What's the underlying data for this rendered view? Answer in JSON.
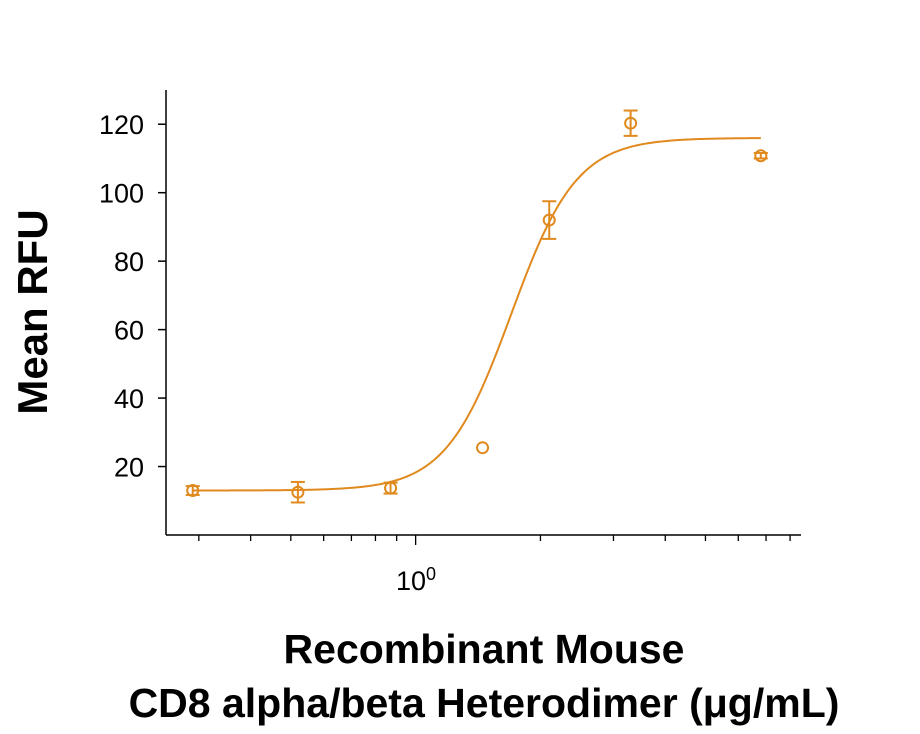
{
  "chart_data": {
    "type": "scatter",
    "xlabel_lines": [
      "Recombinant Mouse",
      "CD8 alpha/beta Heterodimer (μg/mL)"
    ],
    "ylabel": "Mean RFU",
    "x_scale": "log",
    "x_tick_label": {
      "value": 1,
      "base": "10",
      "exponent": "0"
    },
    "y_ticks": [
      20,
      40,
      60,
      80,
      100,
      120
    ],
    "ylim": [
      0,
      130
    ],
    "xlim": [
      0.25,
      8.5
    ],
    "grid": false,
    "legend": "none",
    "color": "#E08A1E",
    "points": [
      {
        "x": 0.29,
        "y": 13,
        "err": 1.3
      },
      {
        "x": 0.52,
        "y": 12.5,
        "err": 3.0
      },
      {
        "x": 0.87,
        "y": 13.7,
        "err": 1.6
      },
      {
        "x": 1.45,
        "y": 25.5,
        "err": 0
      },
      {
        "x": 2.1,
        "y": 92,
        "err": 5.5
      },
      {
        "x": 3.3,
        "y": 120.3,
        "err": 3.7
      },
      {
        "x": 6.8,
        "y": 110.8,
        "err": 0.8
      }
    ],
    "fit": {
      "bottom": 13,
      "top": 116,
      "ec50": 1.7,
      "hill": 5.5,
      "x_range": [
        0.29,
        6.8
      ]
    }
  }
}
